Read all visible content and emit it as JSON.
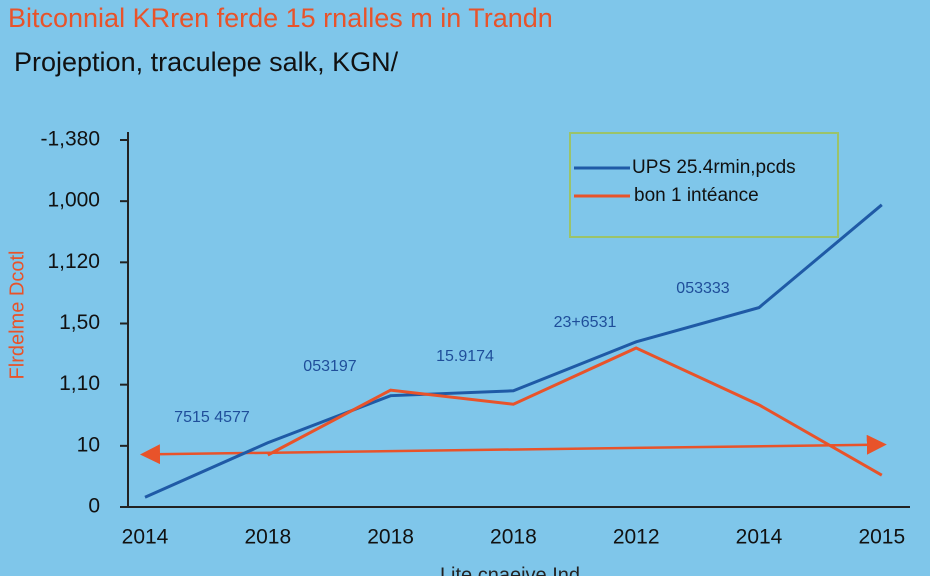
{
  "chart_data": {
    "type": "line",
    "title": "Bitconnial KRren ferde 15 rnalles m in Trandn",
    "subtitle": "Projeption, traculepe salk, KGN/",
    "y_label": "Flrdelme Dcotl",
    "x_label": "Lite cnaeive Ind",
    "categories": [
      "2014",
      "2018",
      "2018",
      "2018",
      "2012",
      "2014",
      "2015"
    ],
    "series": [
      {
        "name": "UPS 25.4rmin,pcds",
        "color": "#1f5aa6",
        "values": [
          1.6,
          10.5,
          18.2,
          19,
          27,
          32.6,
          49.4
        ]
      },
      {
        "name": "bon 1 intéance",
        "color": "#e8532a",
        "values": [
          null,
          8.5,
          19.1,
          16.8,
          26,
          16.7,
          5.2
        ]
      }
    ],
    "trend_line": {
      "color": "#e8532a",
      "values": [
        8.6,
        10.2
      ]
    },
    "annotations": [
      "7515 4577",
      "053197",
      "15.9174",
      "23+6531",
      "053333"
    ],
    "ylim": [
      0,
      60
    ],
    "yticks": [
      0,
      10,
      {
        "value": 20,
        "label": "1,10"
      },
      {
        "value": 30,
        "label": "1,50"
      },
      {
        "value": 40,
        "label": "1,120"
      },
      {
        "value": 50,
        "label": "1,000"
      },
      {
        "value": 60,
        "label": "-1,380"
      }
    ],
    "grid": false,
    "legend": "upper right"
  }
}
